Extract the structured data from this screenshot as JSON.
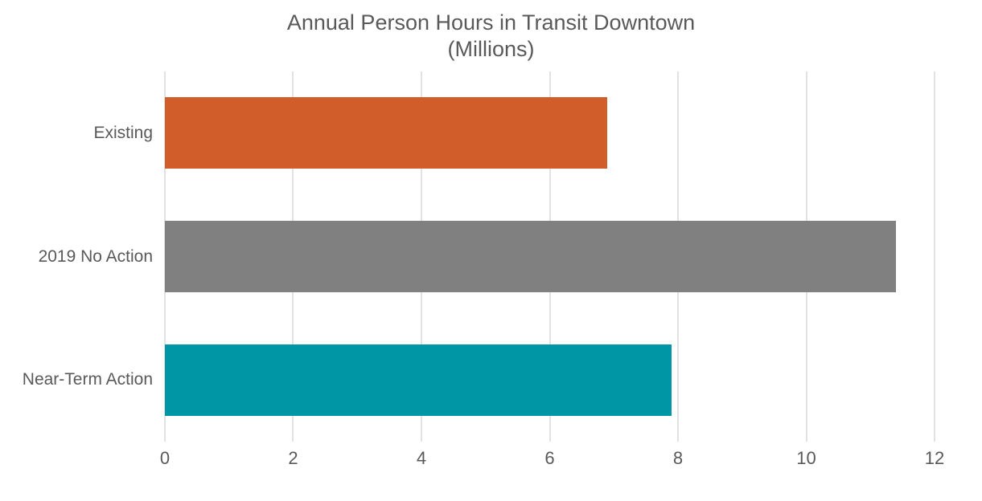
{
  "chart_data": {
    "type": "bar",
    "orientation": "horizontal",
    "title": "Annual Person Hours in Transit Downtown",
    "subtitle": "(Millions)",
    "categories": [
      "Existing",
      "2019 No Action",
      "Near-Term Action"
    ],
    "values": [
      6.9,
      11.4,
      7.9
    ],
    "bar_colors": [
      "#d15d2b",
      "#808080",
      "#0096a5"
    ],
    "xlim": [
      0,
      12
    ],
    "xticks": [
      0,
      2,
      4,
      6,
      8,
      10,
      12
    ],
    "xlabel": "",
    "ylabel": "",
    "grid": "vertical",
    "legend": "none",
    "text_color": "#595959",
    "gridline_color": "#e2e2e2",
    "background": "#ffffff"
  }
}
